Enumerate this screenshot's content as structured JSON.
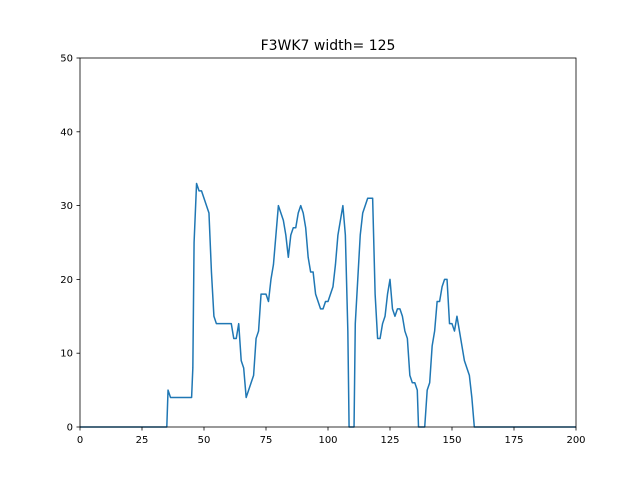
{
  "chart_data": {
    "type": "line",
    "title": "F3WK7 width= 125",
    "xlabel": "",
    "ylabel": "",
    "xlim": [
      0,
      200
    ],
    "ylim": [
      0,
      50
    ],
    "xticks": [
      0,
      25,
      50,
      75,
      100,
      125,
      150,
      175,
      200
    ],
    "yticks": [
      0,
      10,
      20,
      30,
      40,
      50
    ],
    "grid": false,
    "legend": "none",
    "series": [
      {
        "color": "#1f77b4",
        "points": [
          [
            0,
            0
          ],
          [
            35,
            0
          ],
          [
            35.5,
            5
          ],
          [
            36.5,
            4
          ],
          [
            45,
            4
          ],
          [
            45.5,
            8
          ],
          [
            46,
            25
          ],
          [
            47,
            33
          ],
          [
            48,
            32
          ],
          [
            49,
            32
          ],
          [
            52,
            29
          ],
          [
            53,
            21
          ],
          [
            54,
            15
          ],
          [
            55,
            14
          ],
          [
            61,
            14
          ],
          [
            62,
            12
          ],
          [
            63,
            12
          ],
          [
            64,
            14
          ],
          [
            65,
            9
          ],
          [
            66,
            8
          ],
          [
            67,
            4
          ],
          [
            70,
            7
          ],
          [
            71,
            12
          ],
          [
            72,
            13
          ],
          [
            73,
            18
          ],
          [
            75,
            18
          ],
          [
            76,
            17
          ],
          [
            77,
            20
          ],
          [
            78,
            22
          ],
          [
            79,
            26
          ],
          [
            80,
            30
          ],
          [
            82,
            28
          ],
          [
            83,
            26
          ],
          [
            84,
            23
          ],
          [
            85,
            26
          ],
          [
            86,
            27
          ],
          [
            87,
            27
          ],
          [
            88,
            29
          ],
          [
            89,
            30
          ],
          [
            90,
            29
          ],
          [
            91,
            27
          ],
          [
            92,
            23
          ],
          [
            93,
            21
          ],
          [
            94,
            21
          ],
          [
            95,
            18
          ],
          [
            97,
            16
          ],
          [
            98,
            16
          ],
          [
            99,
            17
          ],
          [
            100,
            17
          ],
          [
            102,
            19
          ],
          [
            103,
            22
          ],
          [
            104,
            26
          ],
          [
            106,
            30
          ],
          [
            107,
            26
          ],
          [
            108,
            13
          ],
          [
            108.5,
            0
          ],
          [
            110.5,
            0
          ],
          [
            111,
            14
          ],
          [
            112,
            20
          ],
          [
            113,
            26
          ],
          [
            114,
            29
          ],
          [
            116,
            31
          ],
          [
            118,
            31
          ],
          [
            119,
            18
          ],
          [
            120,
            12
          ],
          [
            121,
            12
          ],
          [
            122,
            14
          ],
          [
            123,
            15
          ],
          [
            124,
            18
          ],
          [
            125,
            20
          ],
          [
            126,
            16
          ],
          [
            127,
            15
          ],
          [
            128,
            16
          ],
          [
            129,
            16
          ],
          [
            130,
            15
          ],
          [
            131,
            13
          ],
          [
            132,
            12
          ],
          [
            133,
            7
          ],
          [
            134,
            6
          ],
          [
            135,
            6
          ],
          [
            136,
            5
          ],
          [
            136.5,
            0
          ],
          [
            139,
            0
          ],
          [
            140,
            5
          ],
          [
            141,
            6
          ],
          [
            142,
            11
          ],
          [
            143,
            13
          ],
          [
            144,
            17
          ],
          [
            145,
            17
          ],
          [
            146,
            19
          ],
          [
            147,
            20
          ],
          [
            148,
            20
          ],
          [
            149,
            14
          ],
          [
            150,
            14
          ],
          [
            151,
            13
          ],
          [
            152,
            15
          ],
          [
            153,
            13
          ],
          [
            154,
            11
          ],
          [
            155,
            9
          ],
          [
            157,
            7
          ],
          [
            158,
            4
          ],
          [
            159,
            0
          ],
          [
            200,
            0
          ]
        ]
      }
    ]
  }
}
